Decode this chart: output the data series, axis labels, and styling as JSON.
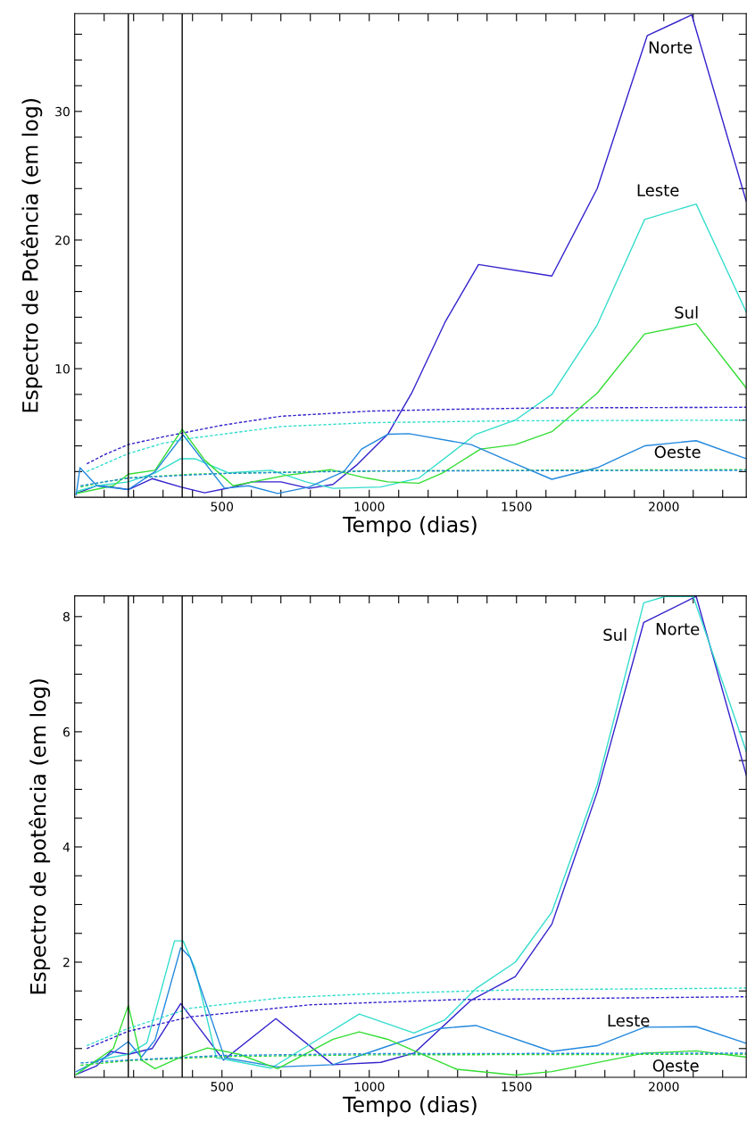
{
  "chart_data": [
    {
      "type": "line",
      "xlabel": "Tempo (dias)",
      "ylabel": "Espectro de Potência (em log)",
      "xlim": [
        0,
        2280
      ],
      "ylim": [
        0,
        37.6
      ],
      "xticks": [
        {
          "value": 100,
          "label": null
        },
        {
          "value": 200,
          "label": null
        },
        {
          "value": 300,
          "label": null
        },
        {
          "value": 400,
          "label": null
        },
        500,
        {
          "value": 600,
          "label": null
        },
        {
          "value": 700,
          "label": null
        },
        {
          "value": 800,
          "label": null
        },
        {
          "value": 900,
          "label": null
        },
        1000,
        {
          "value": 1100,
          "label": null
        },
        {
          "value": 1200,
          "label": null
        },
        {
          "value": 1300,
          "label": null
        },
        {
          "value": 1400,
          "label": null
        },
        1500,
        {
          "value": 1600,
          "label": null
        },
        {
          "value": 1700,
          "label": null
        },
        {
          "value": 1800,
          "label": null
        },
        {
          "value": 1900,
          "label": null
        },
        2000,
        {
          "value": 2100,
          "label": null
        },
        {
          "value": 2200,
          "label": null
        }
      ],
      "yticks": [
        {
          "value": 2,
          "label": null
        },
        {
          "value": 4,
          "label": null
        },
        {
          "value": 6,
          "label": null
        },
        {
          "value": 8,
          "label": null
        },
        10,
        {
          "value": 12,
          "label": null
        },
        {
          "value": 14,
          "label": null
        },
        {
          "value": 16,
          "label": null
        },
        {
          "value": 18,
          "label": null
        },
        20,
        {
          "value": 22,
          "label": null
        },
        {
          "value": 24,
          "label": null
        },
        {
          "value": 26,
          "label": null
        },
        {
          "value": 28,
          "label": null
        },
        30,
        {
          "value": 32,
          "label": null
        },
        {
          "value": 34,
          "label": null
        },
        {
          "value": 36,
          "label": null
        }
      ],
      "series": [
        {
          "name": "Norte",
          "color": "#3322cc",
          "x": [
            5,
            75,
            123,
            182,
            263,
            360,
            441,
            538,
            602,
            700,
            796,
            877,
            957,
            1063,
            1144,
            1257,
            1371,
            1620,
            1774,
            1944,
            2095,
            2280
          ],
          "values": [
            0.3,
            0.9,
            0.8,
            0.6,
            1.45,
            0.8,
            0.35,
            0.8,
            1.2,
            1.2,
            0.7,
            1.0,
            2.5,
            4.9,
            8.1,
            13.6,
            18.1,
            17.2,
            24.0,
            35.9,
            37.5,
            23.0
          ]
        },
        {
          "name": "Leste",
          "color": "#33ddcc",
          "x": [
            5,
            13,
            75,
            182,
            273,
            360,
            408,
            522,
            667,
            785,
            877,
            1039,
            1169,
            1362,
            1496,
            1620,
            1774,
            1935,
            2110,
            2280
          ],
          "values": [
            0.3,
            0.5,
            0.9,
            1.2,
            1.9,
            3.0,
            3.0,
            1.9,
            2.1,
            1.2,
            0.7,
            0.8,
            1.5,
            4.9,
            6.0,
            8.0,
            13.4,
            21.6,
            22.8,
            14.4
          ]
        },
        {
          "name": "Sul",
          "color": "#33dd33",
          "x": [
            5,
            131,
            182,
            273,
            365,
            441,
            538,
            716,
            869,
            990,
            1063,
            1169,
            1249,
            1378,
            1496,
            1620,
            1774,
            1935,
            2110,
            2280
          ],
          "values": [
            0.3,
            0.9,
            1.8,
            2.1,
            5.3,
            2.9,
            0.9,
            1.7,
            2.15,
            1.5,
            1.2,
            1.1,
            1.9,
            3.75,
            4.1,
            5.1,
            8.1,
            12.7,
            13.5,
            8.5
          ]
        },
        {
          "name": "Oeste",
          "color": "#2288dd",
          "x": [
            5,
            18,
            75,
            182,
            273,
            368,
            509,
            590,
            689,
            796,
            914,
            974,
            1063,
            1135,
            1346,
            1496,
            1620,
            1774,
            1935,
            2110,
            2280
          ],
          "values": [
            0.2,
            2.3,
            0.9,
            0.6,
            2.0,
            4.85,
            0.7,
            0.9,
            0.3,
            0.8,
            2.0,
            3.75,
            4.9,
            4.95,
            4.1,
            2.6,
            1.4,
            2.3,
            4.0,
            4.4,
            3.0
          ]
        },
        {
          "color": "#3322cc",
          "line_style": "dashed",
          "x": [
            41,
            100,
            182,
            300,
            500,
            700,
            1000,
            1300,
            1600,
            2280
          ],
          "values": [
            2.6,
            3.3,
            4.1,
            4.7,
            5.6,
            6.3,
            6.7,
            6.85,
            6.95,
            7.0
          ]
        },
        {
          "color": "#33ddcc",
          "line_style": "dashed",
          "x": [
            41,
            182,
            300,
            400,
            700,
            1000,
            1500,
            2280
          ],
          "values": [
            2.0,
            3.4,
            4.2,
            4.6,
            5.5,
            5.8,
            5.95,
            6.0
          ]
        },
        {
          "color": "#33dd33",
          "line_style": "dashed",
          "x": [
            20,
            100,
            182,
            400,
            800,
            1500,
            2280
          ],
          "values": [
            0.8,
            1.2,
            1.5,
            1.8,
            2.0,
            2.1,
            2.15
          ]
        },
        {
          "color": "#2288dd",
          "line_style": "dashed",
          "x": [
            20,
            182,
            500,
            1000,
            2280
          ],
          "values": [
            0.9,
            1.5,
            1.85,
            2.05,
            2.1
          ]
        }
      ],
      "ref_lines": [
        {
          "axis": "x",
          "value": 182,
          "color": "#000000"
        },
        {
          "axis": "x",
          "value": 365,
          "color": "#000000"
        }
      ]
    },
    {
      "type": "line",
      "xlabel": "Tempo (dias)",
      "ylabel": "Espectro de potência (em log)",
      "xlim": [
        0,
        2280
      ],
      "ylim": [
        0,
        8.36
      ],
      "xticks": [
        {
          "value": 100,
          "label": null
        },
        {
          "value": 200,
          "label": null
        },
        {
          "value": 300,
          "label": null
        },
        {
          "value": 400,
          "label": null
        },
        500,
        {
          "value": 600,
          "label": null
        },
        {
          "value": 700,
          "label": null
        },
        {
          "value": 800,
          "label": null
        },
        {
          "value": 900,
          "label": null
        },
        1000,
        {
          "value": 1100,
          "label": null
        },
        {
          "value": 1200,
          "label": null
        },
        {
          "value": 1300,
          "label": null
        },
        {
          "value": 1400,
          "label": null
        },
        1500,
        {
          "value": 1600,
          "label": null
        },
        {
          "value": 1700,
          "label": null
        },
        {
          "value": 1800,
          "label": null
        },
        {
          "value": 1900,
          "label": null
        },
        2000,
        {
          "value": 2100,
          "label": null
        },
        {
          "value": 2200,
          "label": null
        }
      ],
      "yticks": [
        {
          "value": 0.5,
          "label": null
        },
        {
          "value": 1,
          "label": null
        },
        {
          "value": 1.5,
          "label": null
        },
        2,
        {
          "value": 2.5,
          "label": null
        },
        {
          "value": 3,
          "label": null
        },
        {
          "value": 3.5,
          "label": null
        },
        4,
        {
          "value": 4.5,
          "label": null
        },
        {
          "value": 5,
          "label": null
        },
        {
          "value": 5.5,
          "label": null
        },
        6,
        {
          "value": 6.5,
          "label": null
        },
        {
          "value": 7,
          "label": null
        },
        {
          "value": 7.5,
          "label": null
        },
        8
      ],
      "series": [
        {
          "name": "Norte",
          "color": "#3322cc",
          "x": [
            5,
            75,
            123,
            182,
            263,
            360,
            505,
            683,
            877,
            1039,
            1152,
            1346,
            1496,
            1620,
            1774,
            1932,
            2110,
            2280
          ],
          "values": [
            0.05,
            0.2,
            0.45,
            0.4,
            0.5,
            1.28,
            0.3,
            1.02,
            0.22,
            0.26,
            0.42,
            1.34,
            1.75,
            2.66,
            4.95,
            7.9,
            8.35,
            5.25
          ]
        },
        {
          "name": "Sul",
          "color": "#33ddcc",
          "x": [
            5,
            75,
            182,
            245,
            339,
            368,
            408,
            481,
            667,
            820,
            966,
            1152,
            1257,
            1362,
            1496,
            1620,
            1774,
            1932,
            2005,
            2100,
            2280
          ],
          "values": [
            0.05,
            0.3,
            0.4,
            0.6,
            2.37,
            2.37,
            1.9,
            0.34,
            0.16,
            0.64,
            1.1,
            0.77,
            1.0,
            1.54,
            2.0,
            2.87,
            5.08,
            8.24,
            8.35,
            8.35,
            5.66
          ]
        },
        {
          "name": "Leste",
          "color": "#2288dd",
          "x": [
            5,
            123,
            182,
            226,
            273,
            360,
            392,
            509,
            689,
            877,
            1039,
            1242,
            1362,
            1620,
            1774,
            1935,
            2110,
            2280
          ],
          "values": [
            0.1,
            0.4,
            0.62,
            0.35,
            0.65,
            2.25,
            2.08,
            0.34,
            0.18,
            0.22,
            0.5,
            0.85,
            0.9,
            0.45,
            0.55,
            0.87,
            0.88,
            0.59
          ]
        },
        {
          "name": "Oeste",
          "color": "#33dd33",
          "x": [
            5,
            131,
            182,
            226,
            273,
            360,
            451,
            559,
            689,
            877,
            966,
            1063,
            1297,
            1496,
            1620,
            1935,
            2110,
            2280
          ],
          "values": [
            0.05,
            0.5,
            1.25,
            0.3,
            0.15,
            0.35,
            0.51,
            0.4,
            0.15,
            0.66,
            0.79,
            0.66,
            0.14,
            0.04,
            0.1,
            0.42,
            0.46,
            0.35
          ]
        },
        {
          "color": "#33ddcc",
          "line_style": "dashed",
          "x": [
            41,
            182,
            392,
            700,
            1000,
            1500,
            2280
          ],
          "values": [
            0.55,
            0.85,
            1.2,
            1.38,
            1.45,
            1.52,
            1.55
          ]
        },
        {
          "color": "#3322cc",
          "line_style": "dashed",
          "x": [
            41,
            182,
            392,
            800,
            1300,
            2280
          ],
          "values": [
            0.5,
            0.8,
            1.05,
            1.26,
            1.35,
            1.4
          ]
        },
        {
          "color": "#33dd33",
          "line_style": "dashed",
          "x": [
            20,
            182,
            500,
            1000,
            2280
          ],
          "values": [
            0.21,
            0.29,
            0.36,
            0.39,
            0.4
          ]
        },
        {
          "color": "#2288dd",
          "line_style": "dashed",
          "x": [
            20,
            182,
            500,
            1000,
            2280
          ],
          "values": [
            0.25,
            0.3,
            0.38,
            0.41,
            0.42
          ]
        }
      ],
      "ref_lines": [
        {
          "axis": "x",
          "value": 182,
          "color": "#000000"
        },
        {
          "axis": "x",
          "value": 365,
          "color": "#000000"
        }
      ]
    }
  ]
}
